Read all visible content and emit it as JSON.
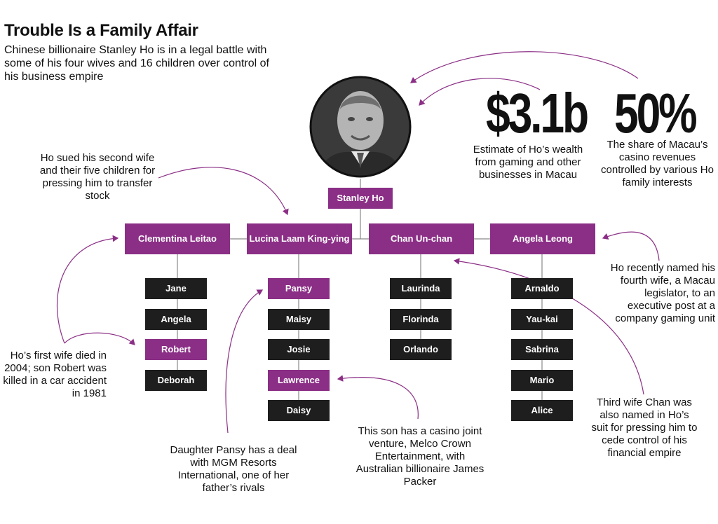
{
  "header": {
    "title": "Trouble Is a Family Affair",
    "subtitle": "Chinese billionaire Stanley Ho is in a legal battle with some of his four wives and 16 children over control of his business empire"
  },
  "stats": {
    "wealth_value": "$3.1b",
    "wealth_caption": "Estimate of Ho’s wealth from gaming and other businesses in Macau",
    "share_value": "50%",
    "share_caption": "The share of Macau’s casino revenues controlled by various Ho family interests"
  },
  "tree": {
    "root": "Stanley Ho",
    "spouses": [
      {
        "name": "Clementina Leitao",
        "children": [
          "Jane",
          "Angela",
          "Robert",
          "Deborah"
        ]
      },
      {
        "name": "Lucina Laam King-ying",
        "children": [
          "Pansy",
          "Maisy",
          "Josie",
          "Lawrence",
          "Daisy"
        ]
      },
      {
        "name": "Chan Un-chan",
        "children": [
          "Laurinda",
          "Florinda",
          "Orlando"
        ]
      },
      {
        "name": "Angela Leong",
        "children": [
          "Arnaldo",
          "Yau-kai",
          "Sabrina",
          "Mario",
          "Alice"
        ]
      }
    ],
    "highlighted_children": [
      "Robert",
      "Pansy",
      "Lawrence"
    ]
  },
  "notes": {
    "second_wife": "Ho sued his second wife and their five children for pressing him to transfer stock",
    "first_wife": "Ho’s first wife died in 2004; son Robert was killed in a car accident in 1981",
    "pansy": "Daughter Pansy has a deal with MGM Resorts International, one of her father’s rivals",
    "lawrence": "This son has a casino joint venture, Melco Crown Entertainment, with Australian billionaire James Packer",
    "third_wife": "Third wife Chan was also named in Ho’s suit for pressing him to cede control of his financial empire",
    "fourth_wife": "Ho recently named his fourth wife, a Macau legislator, to an executive post at a company gaming unit"
  },
  "colors": {
    "accent": "#8b2f86",
    "child_box": "#1e1e1e",
    "line": "#888888"
  }
}
